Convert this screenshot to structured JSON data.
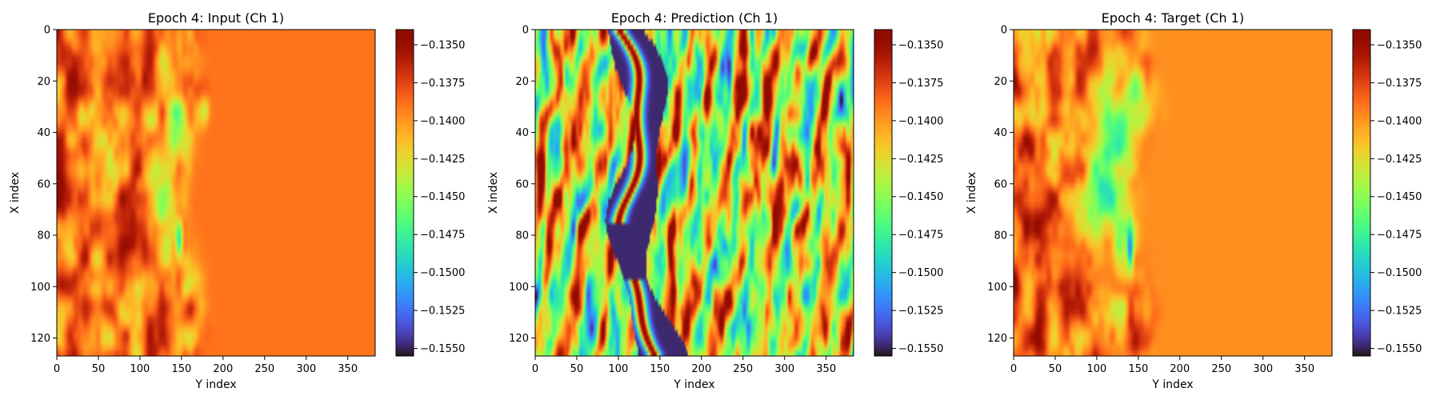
{
  "figure": {
    "colormap": "turbo"
  },
  "chart_data": [
    {
      "type": "heatmap",
      "title": "Epoch 4: Input (Ch 1)",
      "xlabel": "Y index",
      "ylabel": "X index",
      "xlim": [
        0,
        383
      ],
      "ylim": [
        127,
        0
      ],
      "xticks": [
        0,
        50,
        100,
        150,
        200,
        250,
        300,
        350
      ],
      "yticks": [
        0,
        20,
        40,
        60,
        80,
        100,
        120
      ],
      "colorbar": {
        "min": -0.1555,
        "max": -0.134,
        "ticks": [
          -0.135,
          -0.1375,
          -0.14,
          -0.1425,
          -0.145,
          -0.1475,
          -0.15,
          -0.1525,
          -0.155
        ]
      },
      "field": "input"
    },
    {
      "type": "heatmap",
      "title": "Epoch 4: Prediction (Ch 1)",
      "xlabel": "Y index",
      "ylabel": "X index",
      "xlim": [
        0,
        383
      ],
      "ylim": [
        127,
        0
      ],
      "xticks": [
        0,
        50,
        100,
        150,
        200,
        250,
        300,
        350
      ],
      "yticks": [
        0,
        20,
        40,
        60,
        80,
        100,
        120
      ],
      "colorbar": {
        "min": -0.1555,
        "max": -0.134,
        "ticks": [
          -0.135,
          -0.1375,
          -0.14,
          -0.1425,
          -0.145,
          -0.1475,
          -0.15,
          -0.1525,
          -0.155
        ]
      },
      "field": "prediction"
    },
    {
      "type": "heatmap",
      "title": "Epoch 4: Target (Ch 1)",
      "xlabel": "Y index",
      "ylabel": "X index",
      "xlim": [
        0,
        383
      ],
      "ylim": [
        127,
        0
      ],
      "xticks": [
        0,
        50,
        100,
        150,
        200,
        250,
        300,
        350
      ],
      "yticks": [
        0,
        20,
        40,
        60,
        80,
        100,
        120
      ],
      "colorbar": {
        "min": -0.1555,
        "max": -0.134,
        "ticks": [
          -0.135,
          -0.1375,
          -0.14,
          -0.1425,
          -0.145,
          -0.1475,
          -0.15,
          -0.1525,
          -0.155
        ]
      },
      "field": "target"
    }
  ]
}
